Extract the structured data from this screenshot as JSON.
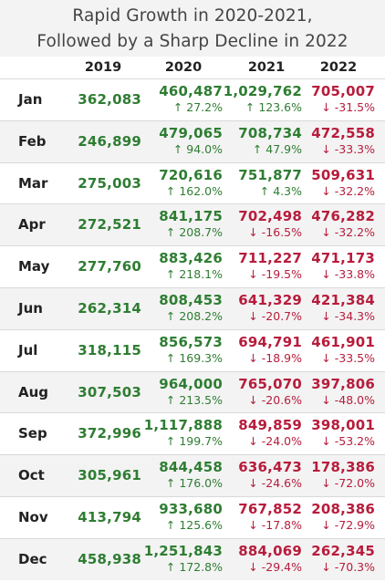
{
  "title": {
    "line1": "Rapid Growth in 2020-2021,",
    "line2": "Followed by a Sharp Decline in 2022"
  },
  "columns": [
    "2019",
    "2020",
    "2021",
    "2022"
  ],
  "colors": {
    "up": "#2e7d32",
    "down": "#b71c3c",
    "base": "#2e7d32"
  },
  "chart_data": {
    "type": "table",
    "title": "Rapid Growth in 2020-2021, Followed by a Sharp Decline in 2022",
    "columns": [
      "2019",
      "2020",
      "2021",
      "2022"
    ],
    "rows": [
      {
        "month": "Jan",
        "values": [
          "362,083",
          "460,487",
          "1,029,762",
          "705,007"
        ],
        "changes": [
          "",
          "↑ 27.2%",
          "↑ 123.6%",
          "↓ -31.5%"
        ]
      },
      {
        "month": "Feb",
        "values": [
          "246,899",
          "479,065",
          "708,734",
          "472,558"
        ],
        "changes": [
          "",
          "↑ 94.0%",
          "↑ 47.9%",
          "↓ -33.3%"
        ]
      },
      {
        "month": "Mar",
        "values": [
          "275,003",
          "720,616",
          "751,877",
          "509,631"
        ],
        "changes": [
          "",
          "↑ 162.0%",
          "↑ 4.3%",
          "↓ -32.2%"
        ]
      },
      {
        "month": "Apr",
        "values": [
          "272,521",
          "841,175",
          "702,498",
          "476,282"
        ],
        "changes": [
          "",
          "↑ 208.7%",
          "↓ -16.5%",
          "↓ -32.2%"
        ]
      },
      {
        "month": "May",
        "values": [
          "277,760",
          "883,426",
          "711,227",
          "471,173"
        ],
        "changes": [
          "",
          "↑ 218.1%",
          "↓ -19.5%",
          "↓ -33.8%"
        ]
      },
      {
        "month": "Jun",
        "values": [
          "262,314",
          "808,453",
          "641,329",
          "421,384"
        ],
        "changes": [
          "",
          "↑ 208.2%",
          "↓ -20.7%",
          "↓ -34.3%"
        ]
      },
      {
        "month": "Jul",
        "values": [
          "318,115",
          "856,573",
          "694,791",
          "461,901"
        ],
        "changes": [
          "",
          "↑ 169.3%",
          "↓ -18.9%",
          "↓ -33.5%"
        ]
      },
      {
        "month": "Aug",
        "values": [
          "307,503",
          "964,000",
          "765,070",
          "397,806"
        ],
        "changes": [
          "",
          "↑ 213.5%",
          "↓ -20.6%",
          "↓ -48.0%"
        ]
      },
      {
        "month": "Sep",
        "values": [
          "372,996",
          "1,117,888",
          "849,859",
          "398,001"
        ],
        "changes": [
          "",
          "↑ 199.7%",
          "↓ -24.0%",
          "↓ -53.2%"
        ]
      },
      {
        "month": "Oct",
        "values": [
          "305,961",
          "844,458",
          "636,473",
          "178,386"
        ],
        "changes": [
          "",
          "↑ 176.0%",
          "↓ -24.6%",
          "↓ -72.0%"
        ]
      },
      {
        "month": "Nov",
        "values": [
          "413,794",
          "933,680",
          "767,852",
          "208,386"
        ],
        "changes": [
          "",
          "↑ 125.6%",
          "↓ -17.8%",
          "↓ -72.9%"
        ]
      },
      {
        "month": "Dec",
        "values": [
          "458,938",
          "1,251,843",
          "884,069",
          "262,345"
        ],
        "changes": [
          "",
          "↑ 172.8%",
          "↓ -29.4%",
          "↓ -70.3%"
        ]
      }
    ]
  }
}
